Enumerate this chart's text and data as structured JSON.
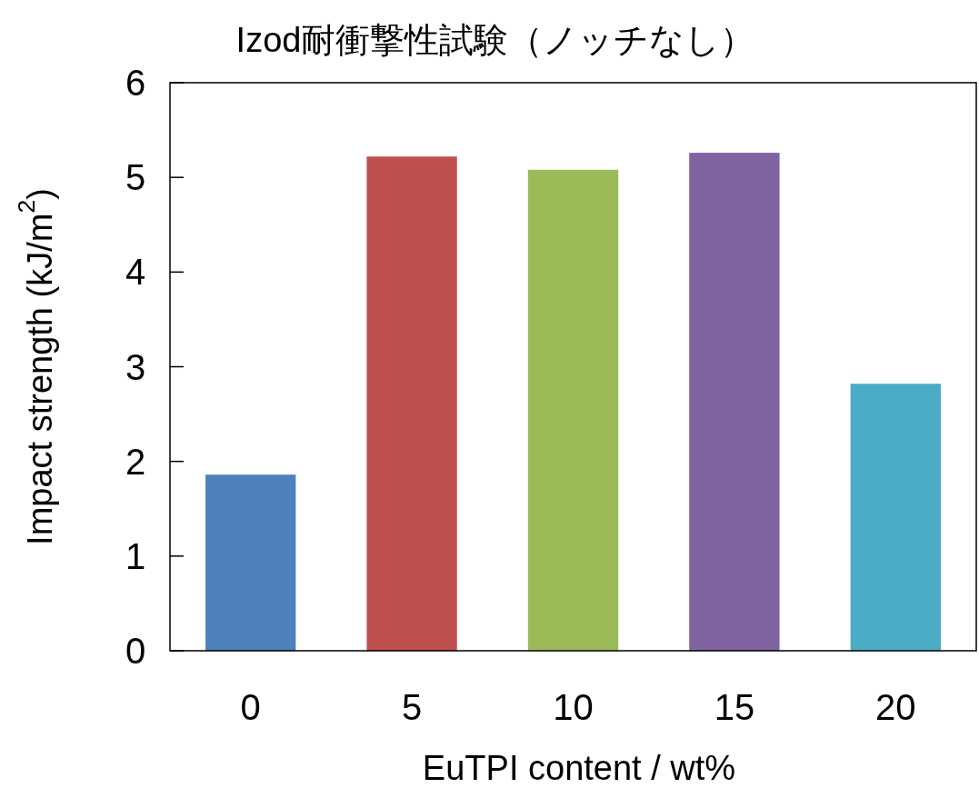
{
  "chart_data": {
    "type": "bar",
    "title": "Izod耐衝撃性試験（ノッチなし）",
    "xlabel": "EuTPI content / wt%",
    "ylabel": "Impact strength (kJ/m$^{2}$)",
    "categories": [
      "0",
      "5",
      "10",
      "15",
      "20"
    ],
    "values": [
      1.86,
      5.22,
      5.08,
      5.26,
      2.82
    ],
    "colors": [
      "#4f81bd",
      "#c0504d",
      "#9bbb59",
      "#8064a2",
      "#4bacc6"
    ],
    "ylim": [
      0,
      6
    ],
    "yticks": [
      0,
      1,
      2,
      3,
      4,
      5,
      6
    ]
  }
}
